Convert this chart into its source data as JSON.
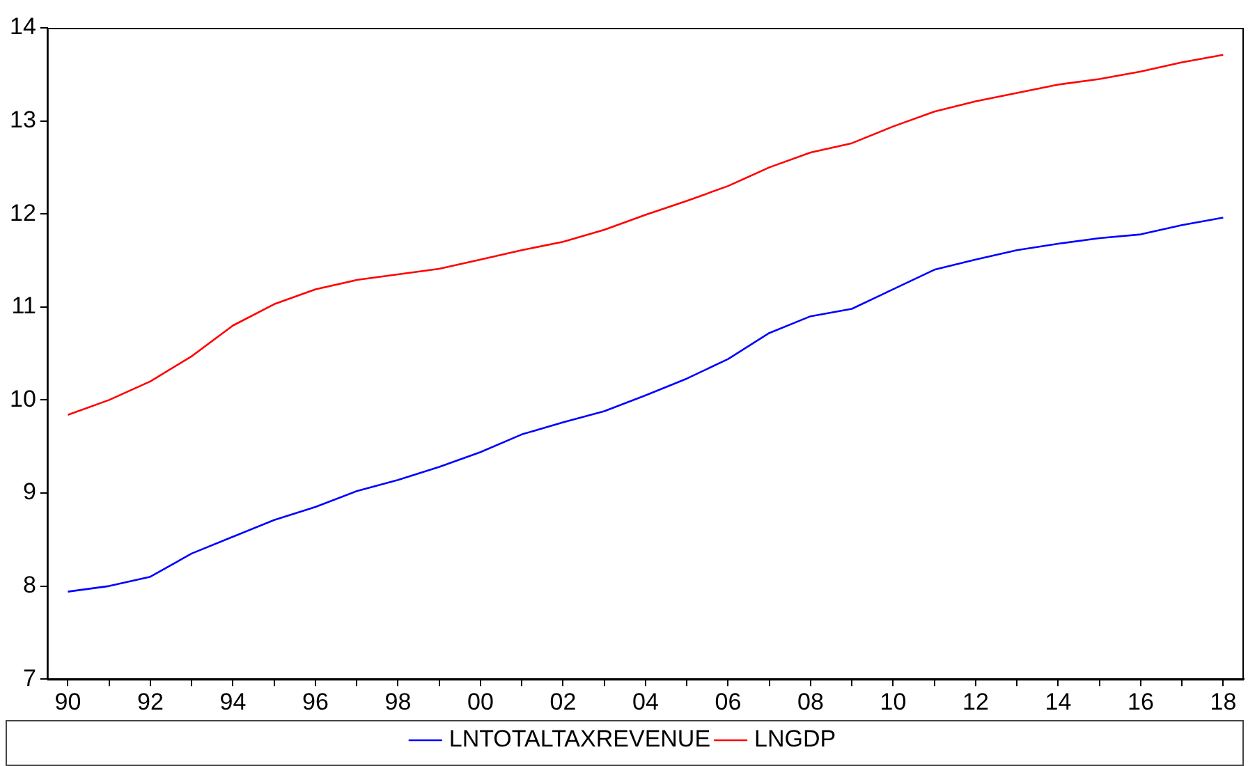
{
  "chart_data": {
    "type": "line",
    "categories": [
      "90",
      null,
      "92",
      null,
      "94",
      null,
      "96",
      null,
      "98",
      null,
      "00",
      null,
      "02",
      null,
      "04",
      null,
      "06",
      null,
      "08",
      null,
      "10",
      null,
      "12",
      null,
      "14",
      null,
      "16",
      null,
      "18"
    ],
    "series": [
      {
        "name": "LNTOTALTAXREVENUE",
        "color": "#0000ff",
        "values": [
          7.94,
          8.0,
          8.1,
          8.35,
          8.53,
          8.71,
          8.85,
          9.02,
          9.14,
          9.28,
          9.44,
          9.63,
          9.76,
          9.88,
          10.05,
          10.23,
          10.44,
          10.72,
          10.9,
          10.98,
          11.19,
          11.4,
          11.51,
          11.61,
          11.68,
          11.74,
          11.78,
          11.88,
          11.96
        ]
      },
      {
        "name": "LNGDP",
        "color": "#ff0000",
        "values": [
          9.84,
          10.0,
          10.2,
          10.47,
          10.8,
          11.03,
          11.19,
          11.29,
          11.35,
          11.41,
          11.51,
          11.61,
          11.7,
          11.83,
          11.99,
          12.14,
          12.3,
          12.5,
          12.66,
          12.76,
          12.94,
          13.1,
          13.21,
          13.3,
          13.39,
          13.45,
          13.53,
          13.63,
          13.71
        ]
      }
    ],
    "ylim": [
      7,
      14
    ],
    "yticks": [
      7,
      8,
      9,
      10,
      11,
      12,
      13,
      14
    ],
    "grid": false,
    "legend": "bottom",
    "marker": "none",
    "line_style": "solid"
  }
}
